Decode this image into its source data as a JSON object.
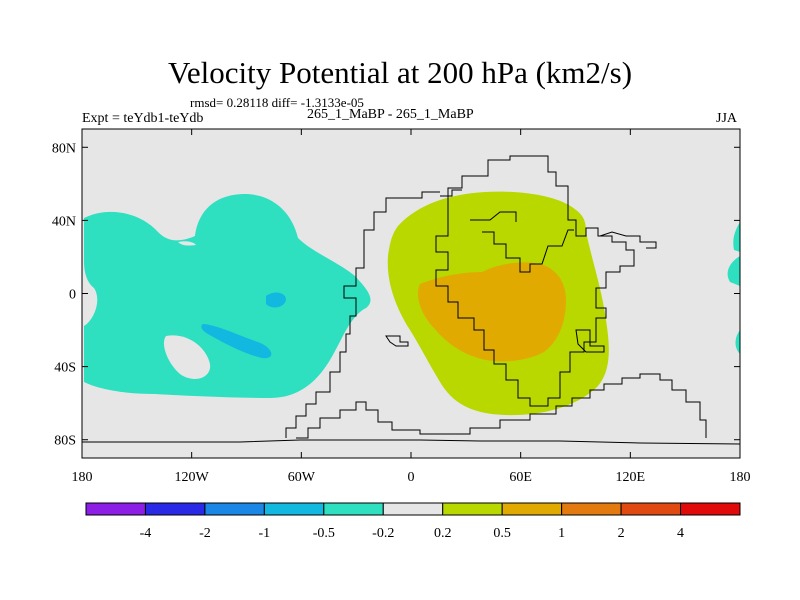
{
  "title": "Velocity Potential at 200 hPa (km2/s)",
  "stats_text": "rmsd= 0.28118 diff= -1.3133e-05",
  "left_label": "Expt = teYdb1-teYdb",
  "center_label": "265_1_MaBP - 265_1_MaBP",
  "right_label": "JJA",
  "map": {
    "projection": "cylindrical-equidistant",
    "lon_range": [
      -180,
      180
    ],
    "lat_range": [
      -90,
      90
    ],
    "background_color": "#e6e6e6",
    "coastline_color": "#000000",
    "x_ticks": [
      {
        "lon": -180,
        "label": "180"
      },
      {
        "lon": -120,
        "label": "120W"
      },
      {
        "lon": -60,
        "label": "60W"
      },
      {
        "lon": 0,
        "label": "0"
      },
      {
        "lon": 60,
        "label": "60E"
      },
      {
        "lon": 120,
        "label": "120E"
      },
      {
        "lon": 180,
        "label": "180"
      }
    ],
    "y_ticks": [
      {
        "lat": 80,
        "label": "80N"
      },
      {
        "lat": 40,
        "label": "40N"
      },
      {
        "lat": 0,
        "label": "0"
      },
      {
        "lat": -40,
        "label": "40S"
      },
      {
        "lat": -80,
        "label": "80S"
      }
    ],
    "fields": [
      {
        "name": "negative-anomaly-pacific",
        "level": "-0.5 to -0.2",
        "color": "#2ee0c0"
      },
      {
        "name": "negative-anomaly-core",
        "level": "-1 to -0.5",
        "color": "#12b8e0"
      },
      {
        "name": "positive-anomaly-africa",
        "level": "0.2 to 0.5",
        "color": "#b8d800"
      },
      {
        "name": "positive-anomaly-core",
        "level": "0.5 to 1",
        "color": "#e0aa00"
      }
    ]
  },
  "colorbar": {
    "colors": [
      "#8c1ee6",
      "#2a2ae6",
      "#1a86e6",
      "#12b8e0",
      "#2ee0c0",
      "#e6e6e6",
      "#b8d800",
      "#e0aa00",
      "#e37a10",
      "#e04a10",
      "#e00a0a"
    ],
    "labels": [
      "-4",
      "-2",
      "-1",
      "-0.5",
      "-0.2",
      "0.2",
      "0.5",
      "1",
      "2",
      "4"
    ]
  }
}
